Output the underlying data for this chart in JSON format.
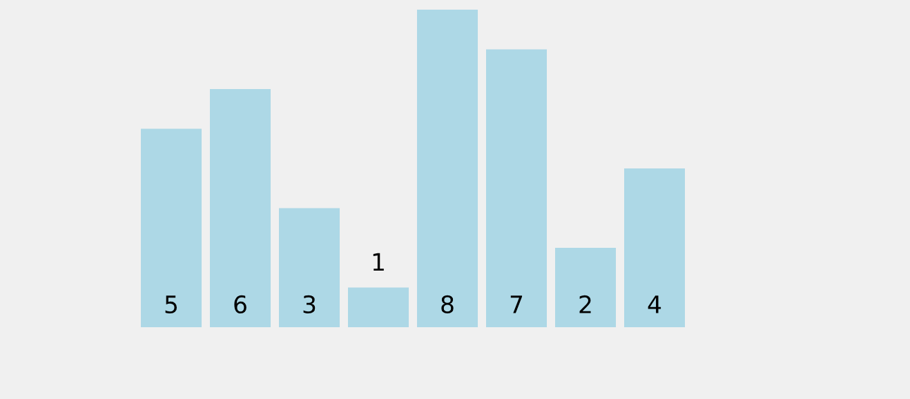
{
  "chart_data": {
    "type": "bar",
    "categories": [
      null,
      null,
      null,
      null,
      null,
      null,
      null,
      null
    ],
    "values": [
      5,
      6,
      3,
      1,
      8,
      7,
      2,
      4
    ],
    "color": "#add8e6",
    "data_labels": true,
    "grid": false,
    "legend": false,
    "tick_labels": false
  }
}
